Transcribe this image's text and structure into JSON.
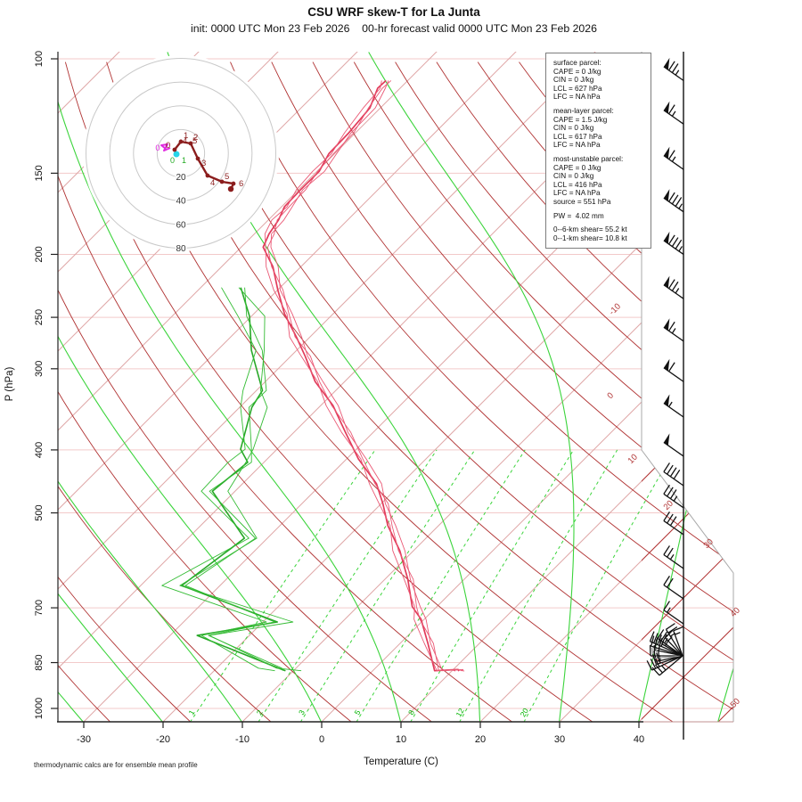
{
  "title": "CSU WRF skew-T for La Junta",
  "subtitle": "init: 0000 UTC Mon 23 Feb 2026    00-hr forecast valid 0000 UTC Mon 23 Feb 2026",
  "footer_note": "thermodynamic calcs are for ensemble mean profile",
  "axes": {
    "x_label": "Temperature (C)",
    "y_label": "P (hPa)",
    "x_ticks": [
      -30,
      -20,
      -10,
      0,
      10,
      20,
      30,
      40
    ],
    "p_ticks": [
      100,
      150,
      200,
      250,
      300,
      400,
      500,
      700,
      850,
      1000
    ]
  },
  "info_box": {
    "sections": [
      {
        "heading": "surface parcel:",
        "lines": [
          "CAPE = 0 J/kg",
          "CIN = 0 J/kg",
          "LCL = 627 hPa",
          "LFC = NA hPa"
        ]
      },
      {
        "heading": "mean-layer parcel:",
        "lines": [
          "CAPE = 1.5 J/kg",
          "CIN = 0 J/kg",
          "LCL = 617 hPa",
          "LFC = NA hPa"
        ]
      },
      {
        "heading": "most-unstable parcel:",
        "lines": [
          "CAPE = 0 J/kg",
          "CIN = 0 J/kg",
          "LCL = 416 hPa",
          "LFC = NA hPa",
          "source = 551 hPa"
        ]
      },
      {
        "heading": "",
        "lines": [
          "PW =  4.02 mm"
        ]
      },
      {
        "heading": "",
        "lines": [
          "0--6-km shear= 55.2 kt",
          "0--1-km shear= 10.8 kt"
        ]
      }
    ]
  },
  "chart_data": {
    "type": "skewt-logp",
    "pressure_range_hPa": [
      100,
      1050
    ],
    "temp_axis_range_C": [
      -30,
      40
    ],
    "isobars_hPa": [
      100,
      150,
      200,
      250,
      300,
      400,
      500,
      700,
      850,
      1000
    ],
    "isotherm_step_C": 10,
    "isotherm_labels_C": [
      -10,
      0,
      10,
      20,
      30,
      40,
      50
    ],
    "dry_adiabats_theta_C": {
      "min": -40,
      "max": 200,
      "step": 10
    },
    "moist_adiabat_anchors_C": [
      -30,
      -20,
      -10,
      0,
      10,
      20,
      30,
      40,
      50
    ],
    "mixing_ratio_lines_g_kg": [
      1,
      2,
      3,
      5,
      8,
      12,
      20
    ],
    "temperature_profile_p_T": [
      [
        876,
        10.9
      ],
      [
        871,
        10.3
      ],
      [
        875,
        8.1
      ],
      [
        794,
        3.5
      ],
      [
        729,
        -0.7
      ],
      [
        697,
        -2.8
      ],
      [
        633,
        -7.1
      ],
      [
        572,
        -12.0
      ],
      [
        523,
        -16.1
      ],
      [
        484,
        -19.8
      ],
      [
        451,
        -23.4
      ],
      [
        413,
        -28.2
      ],
      [
        376,
        -33.5
      ],
      [
        342,
        -38.7
      ],
      [
        314,
        -43.4
      ],
      [
        287,
        -48.2
      ],
      [
        268,
        -52.0
      ],
      [
        247,
        -55.8
      ],
      [
        227,
        -60.0
      ],
      [
        209,
        -63.8
      ],
      [
        195,
        -66.9
      ],
      [
        186,
        -68.2
      ],
      [
        177,
        -69.0
      ],
      [
        169,
        -69.3
      ],
      [
        159,
        -69.8
      ],
      [
        149,
        -70.0
      ],
      [
        140,
        -70.4
      ],
      [
        130,
        -70.9
      ],
      [
        119,
        -71.6
      ],
      [
        111,
        -72.5
      ],
      [
        108,
        -72.8
      ]
    ],
    "dewpoint_profile_p_Td": [
      [
        875,
        -11.0
      ],
      [
        867,
        -13.0
      ],
      [
        772,
        -25.8
      ],
      [
        736,
        -18.2
      ],
      [
        647,
        -35.6
      ],
      [
        547,
        -32.1
      ],
      [
        463,
        -42.9
      ],
      [
        418,
        -42.8
      ],
      [
        399,
        -43.8
      ],
      [
        344,
        -48.5
      ],
      [
        324,
        -50.0
      ],
      [
        281,
        -54.9
      ],
      [
        249,
        -60.3
      ],
      [
        225,
        -65.7
      ]
    ],
    "ensemble": {
      "temp_member_offsets_C": [
        0,
        0.35,
        -0.35,
        0.65
      ],
      "dew_member_offsets_C": [
        0,
        1.1,
        -1.1,
        0.5
      ]
    },
    "hodograph": {
      "ring_labels_kt": [
        20,
        40,
        60,
        80
      ],
      "trace_kt": [
        {
          "u": -5.3,
          "v": 3.0
        },
        {
          "u": 0.0,
          "v": 9.8
        },
        {
          "u": 8.3,
          "v": 8.3
        },
        {
          "u": 14.3,
          "v": -4.5
        },
        {
          "u": 22.5,
          "v": -18.8
        },
        {
          "u": 34.6,
          "v": -24.0
        },
        {
          "u": 44.3,
          "v": -25.6
        },
        {
          "u": 42.1,
          "v": -30.1
        }
      ],
      "km_labels": [
        "0",
        "1",
        "2",
        "3",
        "4",
        "5",
        "6"
      ],
      "member_km_labels_green": [
        "0",
        "1"
      ],
      "member_km_label_magenta": "0",
      "extra_km_labels_dark": [
        "4",
        "5"
      ]
    },
    "wind_barbs_kt": [
      {
        "p": 108,
        "spd": 75
      },
      {
        "p": 126,
        "spd": 65
      },
      {
        "p": 148,
        "spd": 65
      },
      {
        "p": 172,
        "spd": 85
      },
      {
        "p": 200,
        "spd": 85
      },
      {
        "p": 234,
        "spd": 75
      },
      {
        "p": 272,
        "spd": 65
      },
      {
        "p": 314,
        "spd": 60
      },
      {
        "p": 356,
        "spd": 55
      },
      {
        "p": 409,
        "spd": 50
      },
      {
        "p": 454,
        "spd": 40
      },
      {
        "p": 491,
        "spd": 35
      },
      {
        "p": 540,
        "spd": 30
      },
      {
        "p": 609,
        "spd": 25
      },
      {
        "p": 678,
        "spd": 20
      },
      {
        "p": 741,
        "spd": 15
      }
    ],
    "surface_barb_cluster": [
      {
        "ang": 140,
        "spd": 25,
        "len": 34
      },
      {
        "ang": 155,
        "spd": 30,
        "len": 38
      },
      {
        "ang": 168,
        "spd": 15,
        "len": 30
      },
      {
        "ang": 180,
        "spd": 25,
        "len": 36
      },
      {
        "ang": 192,
        "spd": 20,
        "len": 32
      },
      {
        "ang": 204,
        "spd": 35,
        "len": 40
      },
      {
        "ang": 215,
        "spd": 25,
        "len": 34
      },
      {
        "ang": 226,
        "spd": 15,
        "len": 28
      },
      {
        "ang": 238,
        "spd": 25,
        "len": 35
      },
      {
        "ang": 250,
        "spd": 15,
        "len": 30
      },
      {
        "ang": 175,
        "spd": 20,
        "len": 33,
        "gray": true
      },
      {
        "ang": 197,
        "spd": 30,
        "len": 37
      },
      {
        "ang": 162,
        "spd": 20,
        "len": 31
      },
      {
        "ang": 210,
        "spd": 15,
        "len": 27
      }
    ],
    "colors": {
      "isobar": "#f3caca",
      "isotherm": "#dfa8a8",
      "isotherm_dark": "#b03232",
      "dry_adiabat": "#b03232",
      "moist_adiabat": "#3bd43b",
      "mixing_ratio": "#3bd43b",
      "temperature": "#e13b5a",
      "dewpoint": "#28a828",
      "hodograph_trace": "#8b1d1d",
      "barb": "#111111",
      "label_red": "#b03232",
      "label_green": "#00b400"
    }
  }
}
